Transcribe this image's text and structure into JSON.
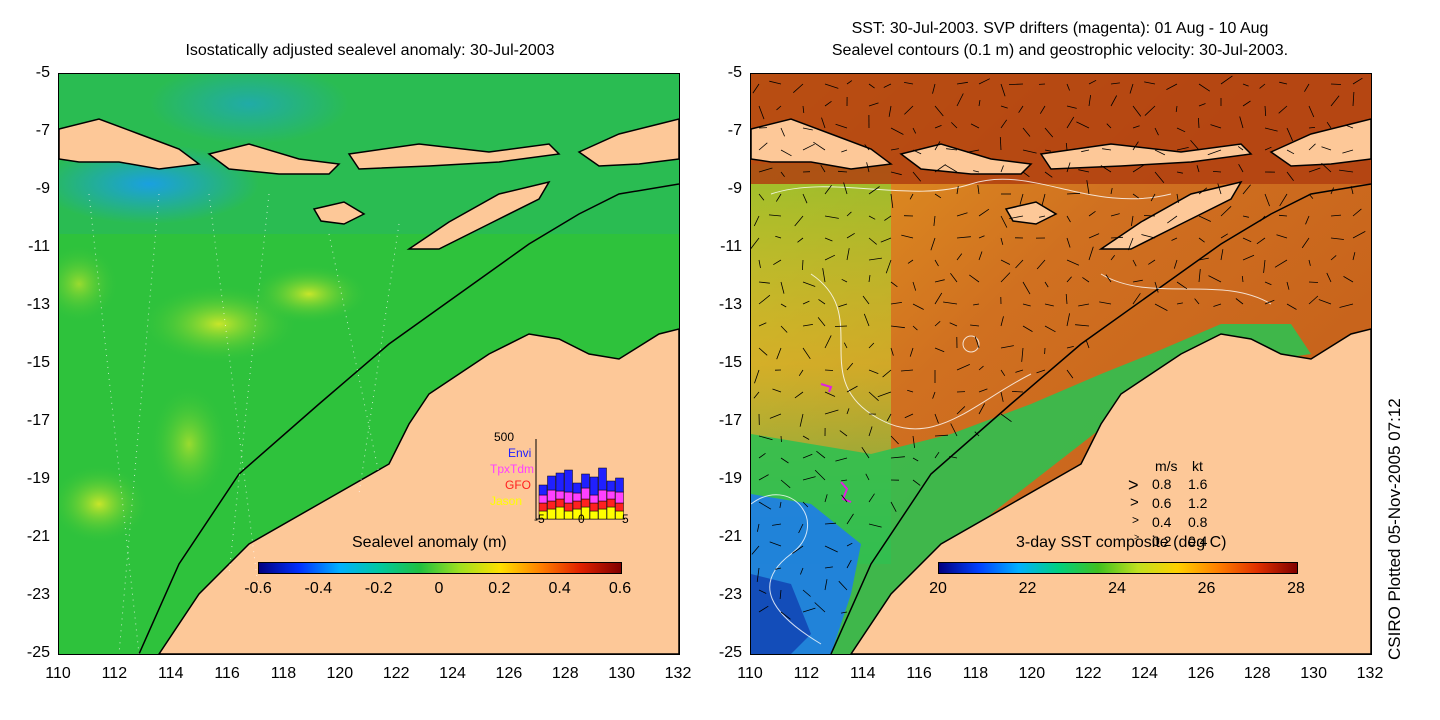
{
  "left_panel": {
    "title": "Isostatically adjusted sealevel anomaly: 30-Jul-2003",
    "y_ticks": [
      "-5",
      "-7",
      "-9",
      "-11",
      "-13",
      "-15",
      "-17",
      "-19",
      "-21",
      "-23",
      "-25"
    ],
    "x_ticks": [
      "110",
      "112",
      "114",
      "116",
      "118",
      "120",
      "122",
      "124",
      "126",
      "128",
      "130",
      "132"
    ],
    "colorbar": {
      "title": "Sealevel anomaly (m)",
      "ticks": [
        "-0.6",
        "-0.4",
        "-0.2",
        "0",
        "0.2",
        "0.4",
        "0.6"
      ]
    },
    "inset": {
      "max_label": "500",
      "missions": [
        {
          "name": "Envi",
          "color": "#2020ff"
        },
        {
          "name": "TpxTdm",
          "color": "#ff40ff"
        },
        {
          "name": "GFO",
          "color": "#ff2020"
        },
        {
          "name": "Jason",
          "color": "#ffff00"
        }
      ],
      "x_ticks": [
        "-5",
        "0",
        "5"
      ]
    }
  },
  "right_panel": {
    "title_line1": "SST: 30-Jul-2003. SVP drifters (magenta): 01 Aug - 10 Aug",
    "title_line2": "Sealevel contours (0.1 m) and geostrophic velocity: 30-Jul-2003.",
    "y_ticks": [
      "-5",
      "-7",
      "-9",
      "-11",
      "-13",
      "-15",
      "-17",
      "-19",
      "-21",
      "-23",
      "-25"
    ],
    "x_ticks": [
      "110",
      "112",
      "114",
      "116",
      "118",
      "120",
      "122",
      "124",
      "126",
      "128",
      "130",
      "132"
    ],
    "colorbar": {
      "title": "3-day SST composite (deg C)",
      "ticks": [
        "20",
        "22",
        "24",
        "26",
        "28"
      ]
    },
    "velocity_legend": {
      "header_ms": "m/s",
      "header_kt": "kt",
      "rows": [
        {
          "ms": "0.8",
          "kt": "1.6"
        },
        {
          "ms": "0.6",
          "kt": "1.2"
        },
        {
          "ms": "0.4",
          "kt": "0.8"
        },
        {
          "ms": "0.2",
          "kt": "0.4"
        }
      ]
    }
  },
  "credit": "CSIRO Plotted 05-Nov-2005 07:12",
  "colors": {
    "land": "#fdc898",
    "ocean_sla": "#2ec23c",
    "sst_warm": "#c8581a",
    "sst_cool": "#3aa8e8"
  }
}
